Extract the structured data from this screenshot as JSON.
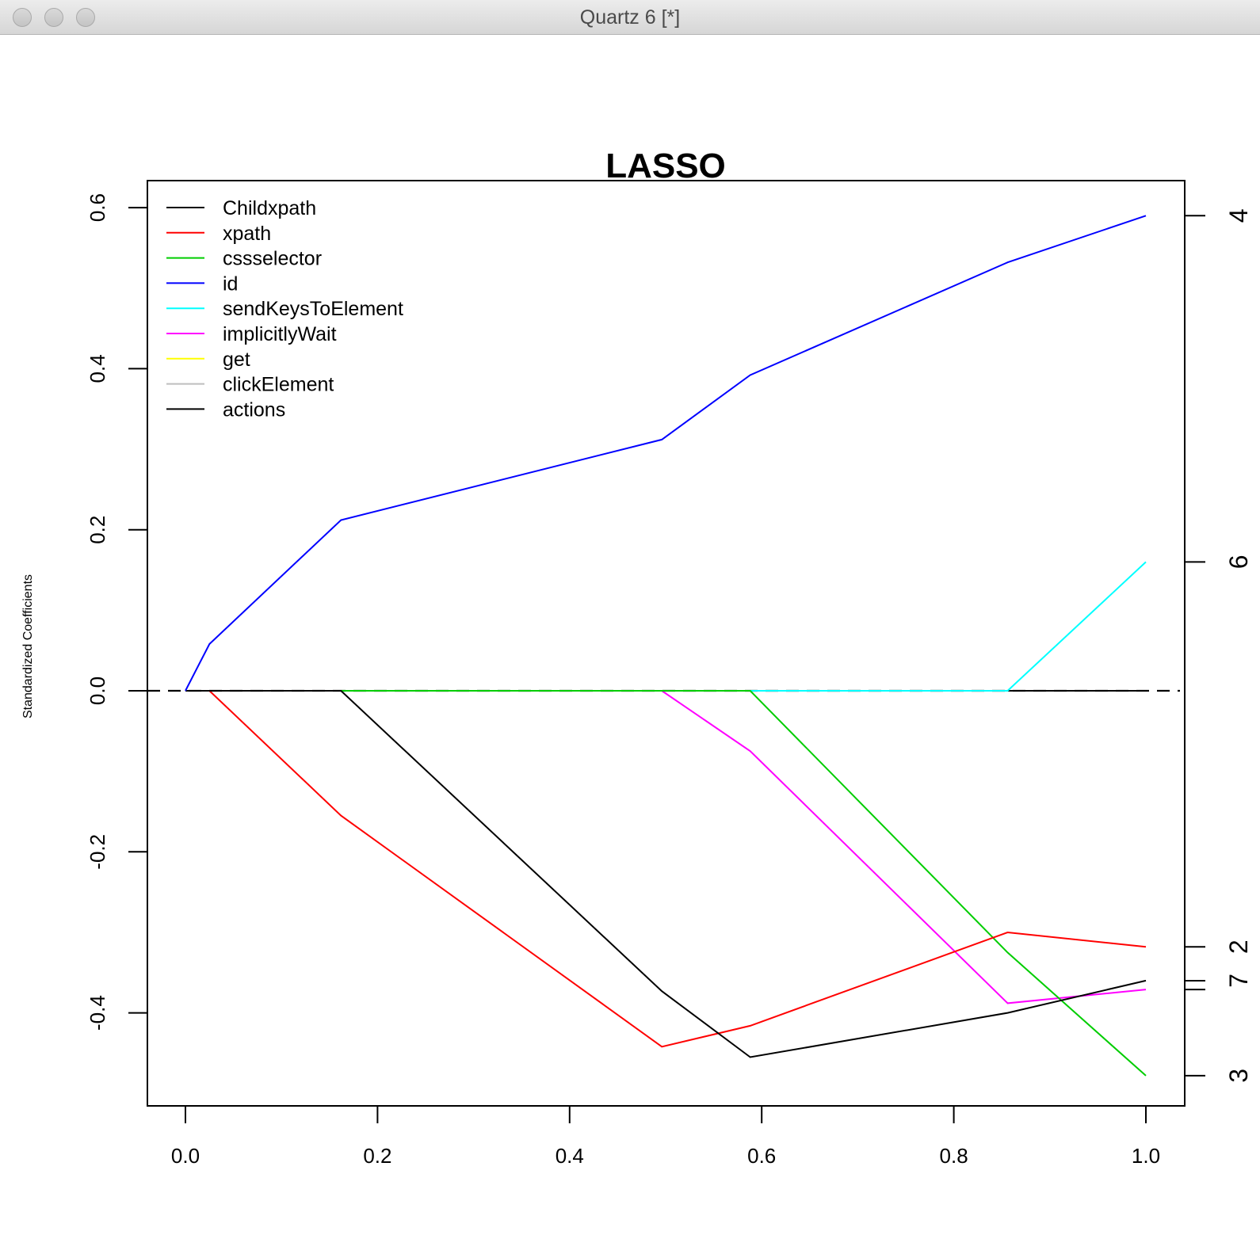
{
  "window": {
    "title": "Quartz 6 [*]",
    "buttons": [
      "close",
      "minimize",
      "zoom"
    ]
  },
  "chart_data": {
    "type": "line",
    "title": "LASSO",
    "xlabel": "",
    "ylabel": "Standardized Coefficients",
    "xlim": [
      0.0,
      1.0
    ],
    "ylim": [
      -0.51,
      0.63
    ],
    "x_ticks": [
      "0.0",
      "0.2",
      "0.4",
      "0.6",
      "0.8",
      "1.0"
    ],
    "y_ticks": [
      "-0.4",
      "-0.2",
      "0.0",
      "0.2",
      "0.4",
      "0.6"
    ],
    "right_axis_labels": [
      {
        "label": "4",
        "y": 0.59
      },
      {
        "label": "6",
        "y": 0.16
      },
      {
        "label": "2",
        "y": -0.318
      },
      {
        "label": "7",
        "y": -0.36
      },
      {
        "label": "3",
        "y": -0.478
      }
    ],
    "right_axis_extra_tick": -0.371,
    "zero_line": "dashed",
    "legend_position": "top-left",
    "x": [
      0.0,
      0.025,
      0.162,
      0.496,
      0.588,
      0.856,
      1.0
    ],
    "series": [
      {
        "name": "Childxpath",
        "color": "#000000",
        "values": [
          0,
          0,
          0,
          0,
          0,
          0,
          0
        ]
      },
      {
        "name": "xpath",
        "color": "#ff0000",
        "values": [
          0,
          0,
          -0.155,
          -0.442,
          -0.416,
          -0.3,
          -0.318
        ]
      },
      {
        "name": "cssselector",
        "color": "#00cd00",
        "values": [
          0,
          0,
          0,
          0,
          0,
          -0.325,
          -0.478
        ]
      },
      {
        "name": "id",
        "color": "#0000ff",
        "values": [
          0,
          0.058,
          0.212,
          0.312,
          0.392,
          0.532,
          0.59
        ]
      },
      {
        "name": "sendKeysToElement",
        "color": "#00ffff",
        "values": [
          0,
          0,
          0,
          0,
          0,
          0,
          0.16
        ]
      },
      {
        "name": "implicitlyWait",
        "color": "#ff00ff",
        "values": [
          0,
          0,
          0,
          0,
          -0.075,
          -0.388,
          -0.371
        ]
      },
      {
        "name": "get",
        "color": "#ffff00",
        "values": [
          0,
          0,
          0,
          0,
          0,
          0,
          0
        ]
      },
      {
        "name": "clickElement",
        "color": "#bebebe",
        "values": [
          0,
          0,
          0,
          0,
          0,
          0,
          0
        ]
      },
      {
        "name": "actions",
        "color": "#000000",
        "values": [
          0,
          0,
          0,
          -0.373,
          -0.455,
          -0.4,
          -0.36
        ]
      }
    ],
    "vertical_lines_at_x": [
      0.0,
      0.025,
      0.162,
      0.496,
      0.588,
      0.856,
      1.0
    ]
  }
}
